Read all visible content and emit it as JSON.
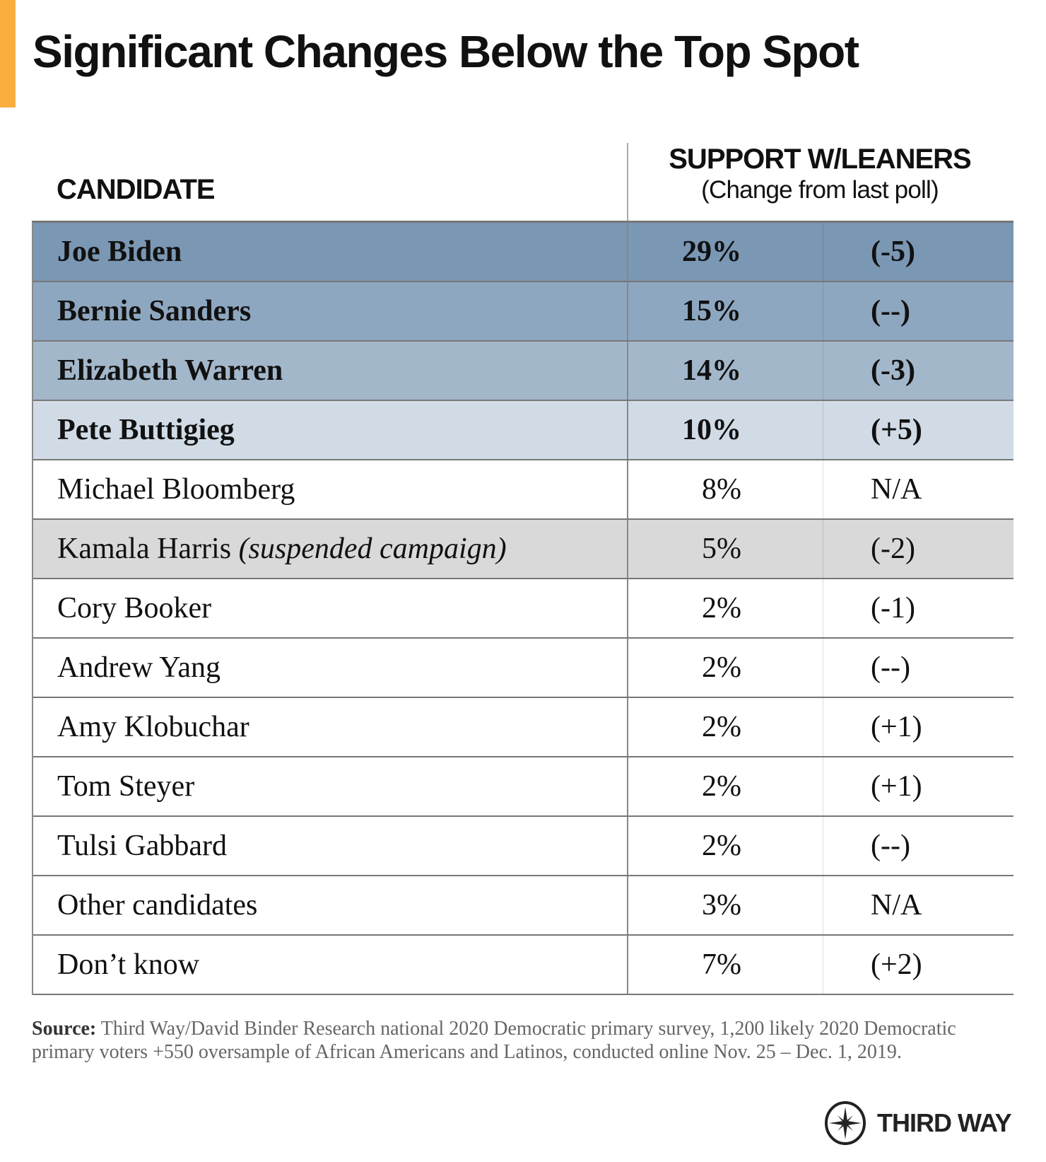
{
  "title": "Significant Changes Below the Top Spot",
  "colors": {
    "accent": "#f9ae3f",
    "tier1": "#7a97b4",
    "tier2": "#8ea7c0",
    "tier3": "#a3b7cb",
    "tier4": "#d0dbe6",
    "suspended": "#d9d9d9",
    "default": "#ffffff"
  },
  "table": {
    "header_candidate": "CANDIDATE",
    "header_support": "SUPPORT W/LEANERS",
    "header_support_sub": "(Change from last poll)",
    "rows": [
      {
        "name": "Joe Biden",
        "note": "",
        "support": "29%",
        "change": "(-5)",
        "bg": "tier1",
        "bold": true
      },
      {
        "name": "Bernie Sanders",
        "note": "",
        "support": "15%",
        "change": "(--)",
        "bg": "tier2",
        "bold": true
      },
      {
        "name": "Elizabeth Warren",
        "note": "",
        "support": "14%",
        "change": "(-3)",
        "bg": "tier3",
        "bold": true
      },
      {
        "name": "Pete Buttigieg",
        "note": "",
        "support": "10%",
        "change": "(+5)",
        "bg": "tier4",
        "bold": true
      },
      {
        "name": "Michael Bloomberg",
        "note": "",
        "support": "8%",
        "change": "N/A",
        "bg": "default",
        "bold": false
      },
      {
        "name": "Kamala Harris ",
        "note": "(suspended campaign)",
        "support": "5%",
        "change": "(-2)",
        "bg": "suspended",
        "bold": false
      },
      {
        "name": "Cory Booker",
        "note": "",
        "support": "2%",
        "change": "(-1)",
        "bg": "default",
        "bold": false
      },
      {
        "name": "Andrew Yang",
        "note": "",
        "support": "2%",
        "change": "(--)",
        "bg": "default",
        "bold": false
      },
      {
        "name": "Amy Klobuchar",
        "note": "",
        "support": "2%",
        "change": "(+1)",
        "bg": "default",
        "bold": false
      },
      {
        "name": "Tom Steyer",
        "note": "",
        "support": "2%",
        "change": "(+1)",
        "bg": "default",
        "bold": false
      },
      {
        "name": "Tulsi Gabbard",
        "note": "",
        "support": "2%",
        "change": "(--)",
        "bg": "default",
        "bold": false
      },
      {
        "name": "Other candidates",
        "note": "",
        "support": "3%",
        "change": "N/A",
        "bg": "default",
        "bold": false
      },
      {
        "name": "Don’t know",
        "note": "",
        "support": "7%",
        "change": "(+2)",
        "bg": "default",
        "bold": false
      }
    ]
  },
  "source": {
    "label": "Source:",
    "text": " Third Way/David Binder Research national 2020 Democratic primary survey, 1,200 likely 2020 Democratic primary voters +550 oversample of African Americans and Latinos, conducted online Nov. 25 – Dec. 1, 2019."
  },
  "logo": {
    "text": "THIRD WAY",
    "icon": "compass-star-icon"
  }
}
